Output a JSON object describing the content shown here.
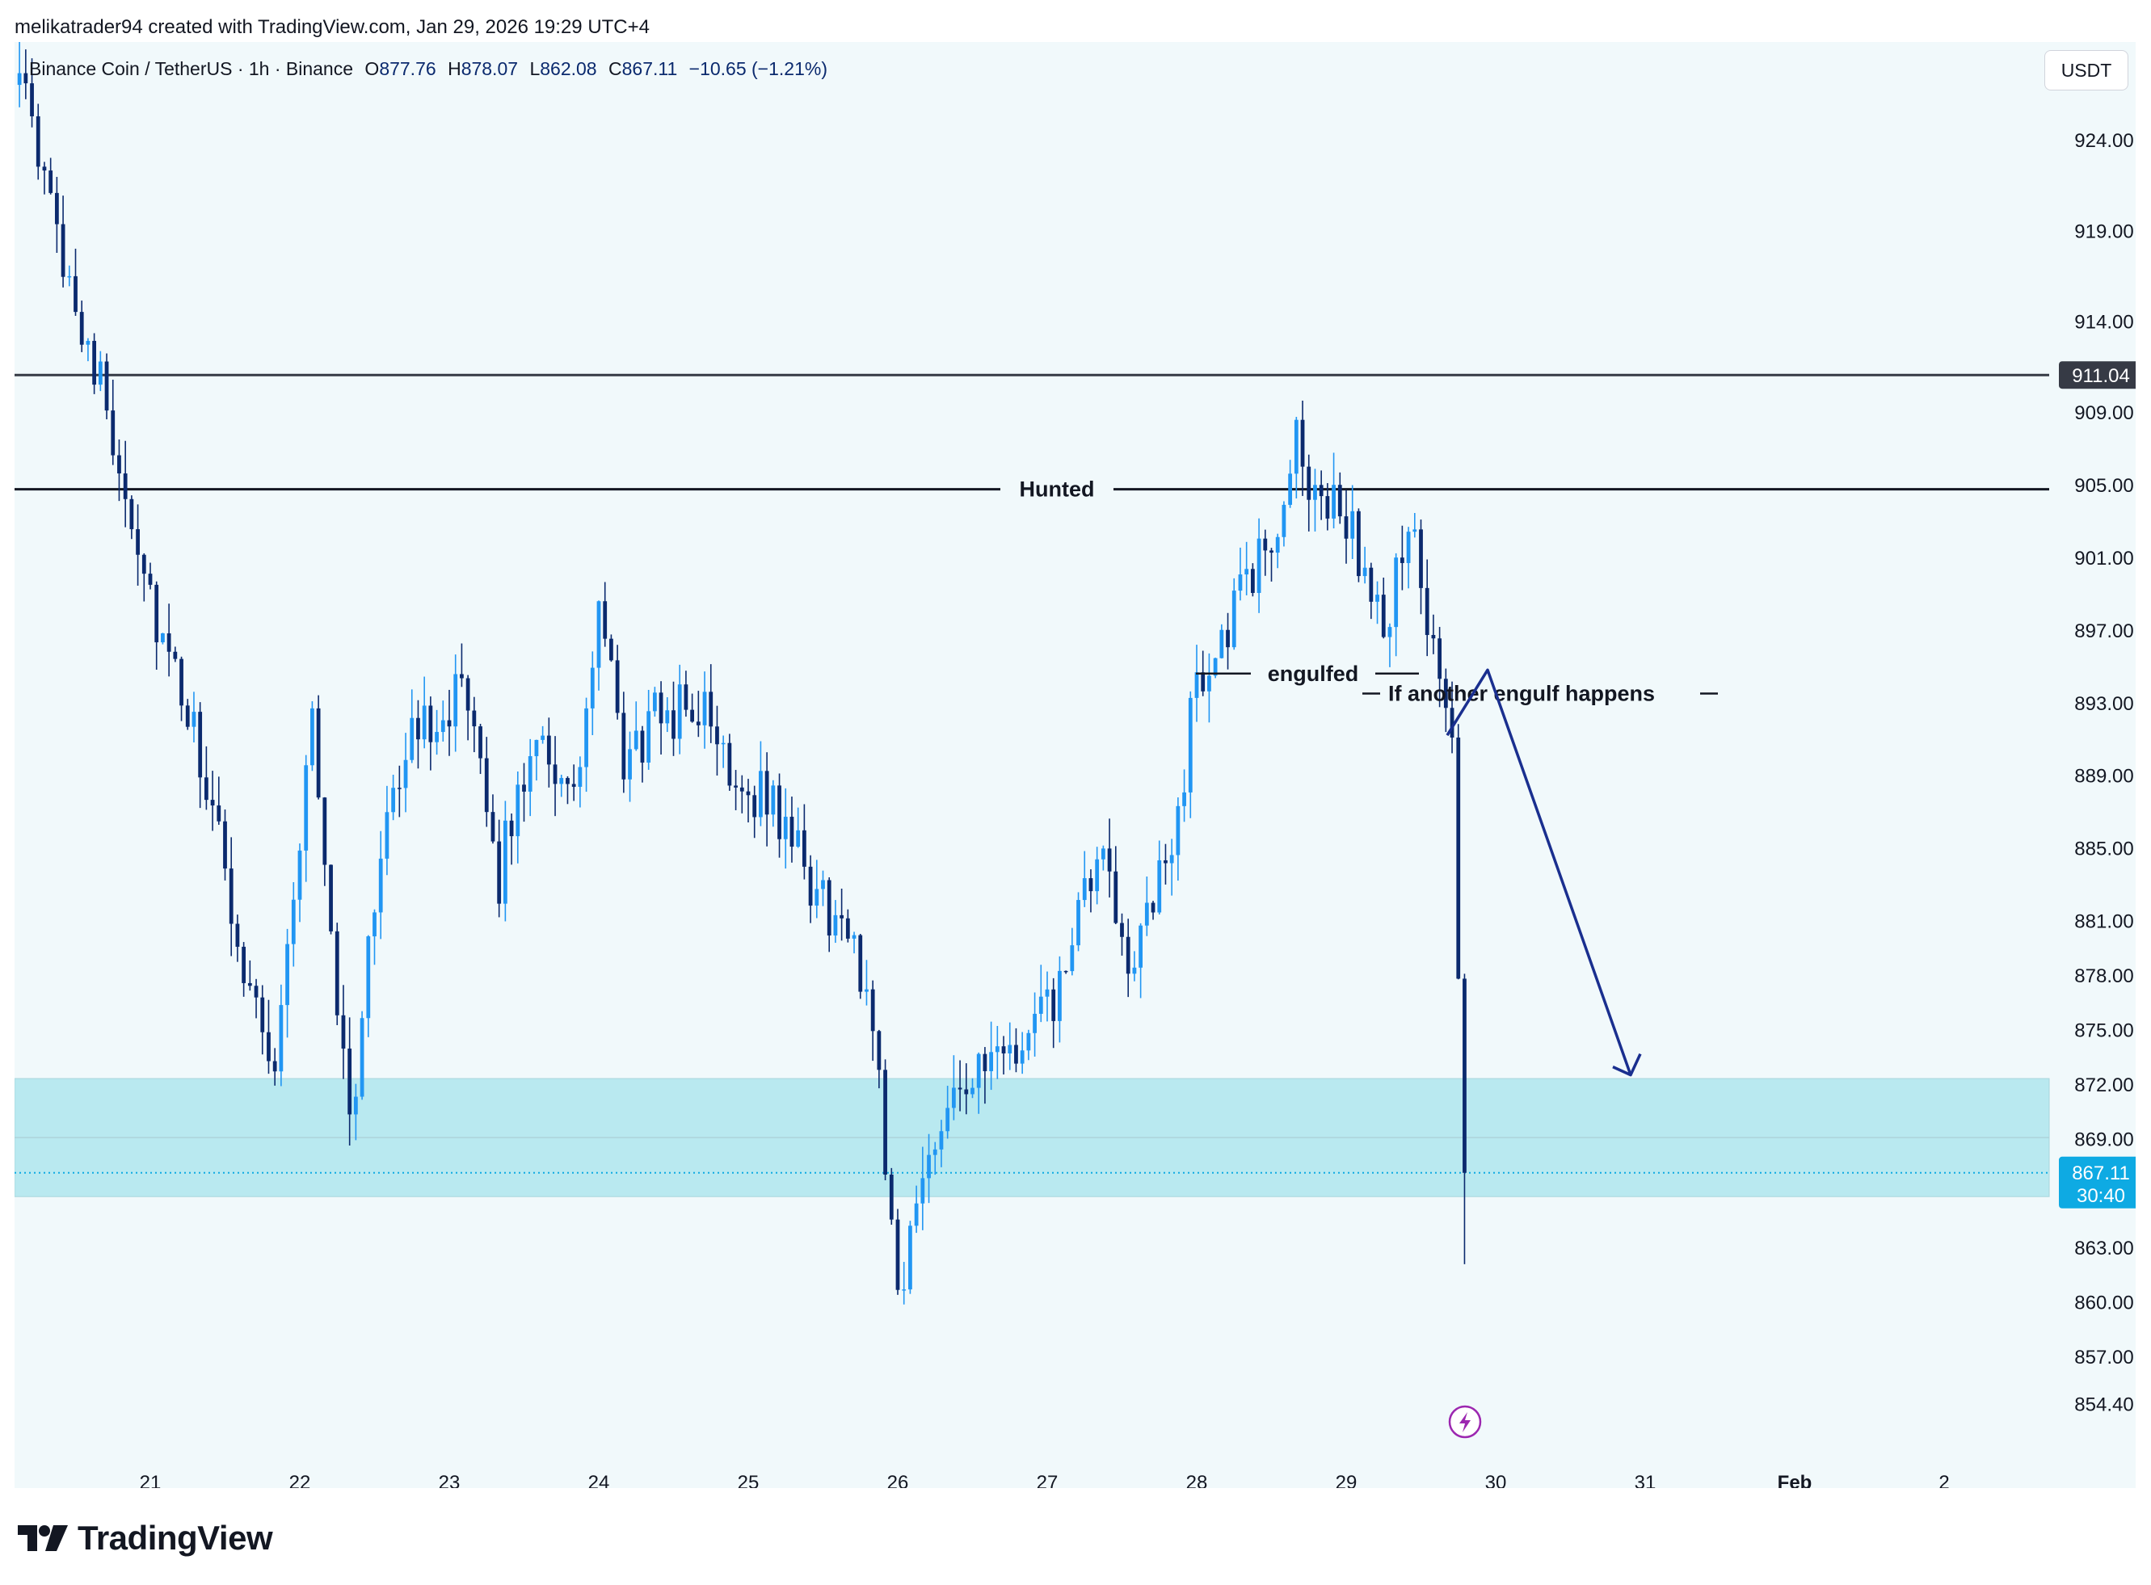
{
  "header": {
    "credit": "melikatrader94 created with TradingView.com, Jan 29, 2026 19:29 UTC+4"
  },
  "legend": {
    "symbol": "Binance Coin / TetherUS · 1h · Binance",
    "open_label": "O",
    "open": "877.76",
    "high_label": "H",
    "high": "878.07",
    "low_label": "L",
    "low": "862.08",
    "close_label": "C",
    "close": "867.11",
    "change": "−10.65 (−1.21%)"
  },
  "currency_button": "USDT",
  "footer": {
    "brand": "TradingView"
  },
  "colors": {
    "up": "#2196f3",
    "down": "#0b2a6e",
    "zone_fill": "#b9e9f0",
    "background": "#f1f9fb",
    "arrow": "#1a2f8f",
    "price_label_bg": "#0eaae3",
    "level_label_bg": "#363a45",
    "bolt_icon": "#9c27b0"
  },
  "chart_data": {
    "type": "candlestick",
    "symbol": "Binance Coin / TetherUS",
    "timeframe": "1h",
    "y_axis_ticks": [
      "924.00",
      "919.00",
      "914.00",
      "909.00",
      "905.00",
      "901.00",
      "897.00",
      "893.00",
      "889.00",
      "885.00",
      "881.00",
      "878.00",
      "875.00",
      "872.00",
      "869.00",
      "863.00",
      "860.00",
      "857.00",
      "854.40"
    ],
    "x_axis_ticks": [
      "21",
      "22",
      "23",
      "24",
      "25",
      "26",
      "27",
      "28",
      "29",
      "30",
      "31",
      "Feb",
      "2"
    ],
    "ylim": [
      852.8,
      928.3
    ],
    "horizontal_levels": [
      {
        "price": 911.04,
        "label": "911.04"
      },
      {
        "price": 904.75,
        "label": "Hunted"
      }
    ],
    "demand_zone": {
      "low": 865.8,
      "high": 872.3
    },
    "current_price": {
      "value": "867.11",
      "countdown": "30:40"
    },
    "annotations": [
      {
        "text": "engulfed",
        "price": 894.6
      },
      {
        "text": "If another engulf happens",
        "price": 893.5
      }
    ],
    "projected_path": [
      {
        "date": "29 ~20:00",
        "price": 891.2
      },
      {
        "date": "29 ~23:00",
        "price": 894.8
      },
      {
        "date": "31 ~01:00",
        "price": 872.5
      }
    ],
    "anchors": [
      {
        "date": "20 ~02:00",
        "price": 928.5
      },
      {
        "date": "20 ~08:00",
        "price": 920.0
      },
      {
        "date": "20 ~14:00",
        "price": 913.0
      },
      {
        "date": "20 ~20:00",
        "price": 905.0
      },
      {
        "date": "21 ~02:00",
        "price": 896.0
      },
      {
        "date": "21 ~08:00",
        "price": 890.0
      },
      {
        "date": "21 ~14:00",
        "price": 880.0
      },
      {
        "date": "21 ~20:00",
        "price": 873.0
      },
      {
        "date": "22 ~02:00",
        "price": 892.0
      },
      {
        "date": "22 ~08:00",
        "price": 869.5
      },
      {
        "date": "22 ~14:00",
        "price": 888.0
      },
      {
        "date": "22 ~20:00",
        "price": 892.0
      },
      {
        "date": "23 ~02:00",
        "price": 893.5
      },
      {
        "date": "23 ~08:00",
        "price": 883.5
      },
      {
        "date": "23 ~14:00",
        "price": 892.0
      },
      {
        "date": "23 ~20:00",
        "price": 887.0
      },
      {
        "date": "24 ~00:00",
        "price": 898.0
      },
      {
        "date": "24 ~04:00",
        "price": 889.5
      },
      {
        "date": "24 ~10:00",
        "price": 892.5
      },
      {
        "date": "24 ~16:00",
        "price": 892.8
      },
      {
        "date": "24 ~22:00",
        "price": 889.0
      },
      {
        "date": "25 ~04:00",
        "price": 887.5
      },
      {
        "date": "25 ~10:00",
        "price": 883.0
      },
      {
        "date": "25 ~16:00",
        "price": 880.0
      },
      {
        "date": "25 ~20:00",
        "price": 876.0
      },
      {
        "date": "26 ~00:00",
        "price": 860.5
      },
      {
        "date": "26 ~04:00",
        "price": 866.5
      },
      {
        "date": "26 ~08:00",
        "price": 872.0
      },
      {
        "date": "26 ~14:00",
        "price": 872.5
      },
      {
        "date": "26 ~20:00",
        "price": 874.0
      },
      {
        "date": "27 ~02:00",
        "price": 877.0
      },
      {
        "date": "27 ~08:00",
        "price": 884.5
      },
      {
        "date": "27 ~14:00",
        "price": 878.5
      },
      {
        "date": "27 ~20:00",
        "price": 885.0
      },
      {
        "date": "28 ~00:00",
        "price": 894.0
      },
      {
        "date": "28 ~06:00",
        "price": 898.0
      },
      {
        "date": "28 ~12:00",
        "price": 902.0
      },
      {
        "date": "28 ~16:00",
        "price": 907.0
      },
      {
        "date": "28 ~20:00",
        "price": 904.0
      },
      {
        "date": "29 ~00:00",
        "price": 903.5
      },
      {
        "date": "29 ~06:00",
        "price": 896.5
      },
      {
        "date": "29 ~10:00",
        "price": 903.5
      },
      {
        "date": "29 ~14:00",
        "price": 895.0
      },
      {
        "date": "29 ~17:00",
        "price": 891.5
      },
      {
        "date": "29 ~18:00",
        "price": 877.8
      },
      {
        "date": "29 ~19:00",
        "price": 867.11
      }
    ]
  }
}
